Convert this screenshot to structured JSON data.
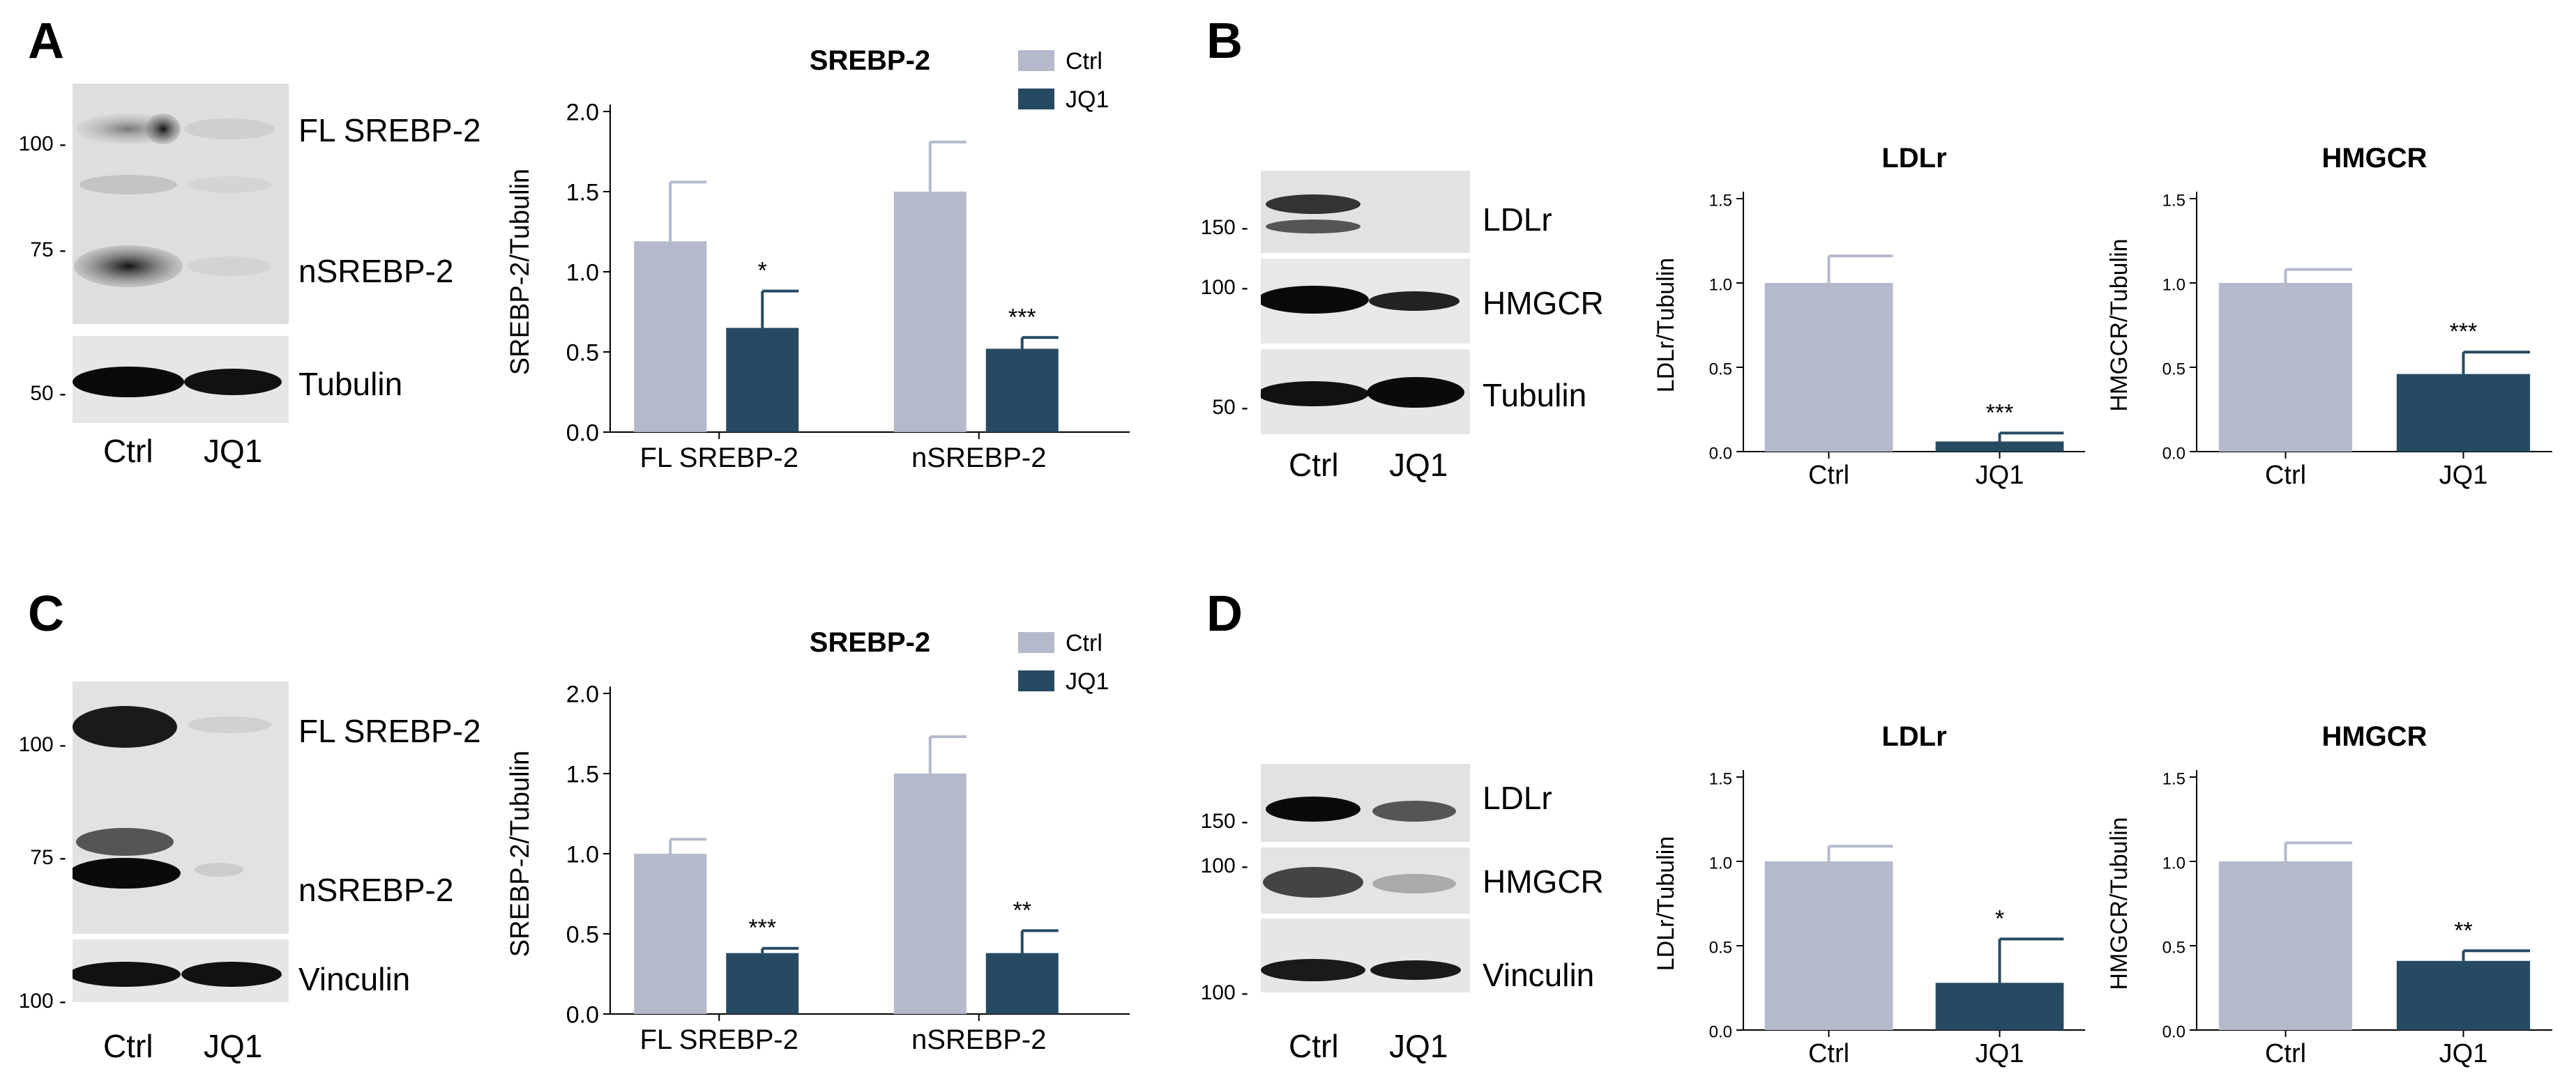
{
  "colors": {
    "ctrl": "#b4b9cc",
    "jq1": "#274a63",
    "axis": "#000000",
    "blot_bg": "#e8e8e8",
    "band": "#111111"
  },
  "panels": {
    "A": {
      "letter": "A",
      "blot": {
        "markers": [
          "100 -",
          "75 -",
          "50 -"
        ],
        "bands": [
          "FL SREBP-2",
          "nSREBP-2",
          "Tubulin"
        ],
        "lanes": [
          "Ctrl",
          "JQ1"
        ]
      }
    },
    "B": {
      "letter": "B",
      "blot": {
        "markers": [
          "150 -",
          "100 -",
          "50 -"
        ],
        "bands": [
          "LDLr",
          "HMGCR",
          "Tubulin"
        ],
        "lanes": [
          "Ctrl",
          "JQ1"
        ]
      }
    },
    "C": {
      "letter": "C",
      "blot": {
        "markers": [
          "100 -",
          "75 -",
          "100 -"
        ],
        "bands": [
          "FL SREBP-2",
          "nSREBP-2",
          "Vinculin"
        ],
        "lanes": [
          "Ctrl",
          "JQ1"
        ]
      }
    },
    "D": {
      "letter": "D",
      "blot": {
        "markers": [
          "150 -",
          "100 -",
          "100 -"
        ],
        "bands": [
          "LDLr",
          "HMGCR",
          "Vinculin"
        ],
        "lanes": [
          "Ctrl",
          "JQ1"
        ]
      }
    }
  },
  "chart_data": [
    {
      "id": "A-srebp2",
      "type": "bar",
      "title": "SREBP-2",
      "ylabel": "SREBP-2/Tubulin",
      "ylim": [
        0,
        2.0
      ],
      "yticks": [
        "0.0",
        "0.5",
        "1.0",
        "1.5",
        "2.0"
      ],
      "categories": [
        "FL SREBP-2",
        "nSREBP-2"
      ],
      "legend_position": "top-right",
      "series": [
        {
          "name": "Ctrl",
          "values": [
            1.19,
            1.5
          ],
          "errors": [
            0.37,
            0.31
          ],
          "sig": [
            "",
            ""
          ]
        },
        {
          "name": "JQ1",
          "values": [
            0.65,
            0.52
          ],
          "errors": [
            0.23,
            0.07
          ],
          "sig": [
            "*",
            "***"
          ]
        }
      ]
    },
    {
      "id": "B-ldlr",
      "type": "bar",
      "title": "LDLr",
      "ylabel": "LDLr/Tubulin",
      "ylim": [
        0,
        1.5
      ],
      "yticks": [
        "0.0",
        "0.5",
        "1.0",
        "1.5"
      ],
      "categories": [
        "Ctrl",
        "JQ1"
      ],
      "values": [
        1.0,
        0.06
      ],
      "errors": [
        0.16,
        0.05
      ],
      "sig": [
        "",
        "***"
      ]
    },
    {
      "id": "B-hmgcr",
      "type": "bar",
      "title": "HMGCR",
      "ylabel": "HMGCR/Tubulin",
      "ylim": [
        0,
        1.5
      ],
      "yticks": [
        "0.0",
        "0.5",
        "1.0",
        "1.5"
      ],
      "categories": [
        "Ctrl",
        "JQ1"
      ],
      "values": [
        1.0,
        0.46
      ],
      "errors": [
        0.08,
        0.13
      ],
      "sig": [
        "",
        "***"
      ]
    },
    {
      "id": "C-srebp2",
      "type": "bar",
      "title": "SREBP-2",
      "ylabel": "SREBP-2/Tubulin",
      "ylim": [
        0,
        2.0
      ],
      "yticks": [
        "0.0",
        "0.5",
        "1.0",
        "1.5",
        "2.0"
      ],
      "categories": [
        "FL SREBP-2",
        "nSREBP-2"
      ],
      "legend_position": "top-right",
      "series": [
        {
          "name": "Ctrl",
          "values": [
            1.0,
            1.5
          ],
          "errors": [
            0.09,
            0.23
          ],
          "sig": [
            "",
            ""
          ]
        },
        {
          "name": "JQ1",
          "values": [
            0.38,
            0.38
          ],
          "errors": [
            0.03,
            0.14
          ],
          "sig": [
            "***",
            "**"
          ]
        }
      ]
    },
    {
      "id": "D-ldlr",
      "type": "bar",
      "title": "LDLr",
      "ylabel": "LDLr/Tubulin",
      "ylim": [
        0,
        1.5
      ],
      "yticks": [
        "0.0",
        "0.5",
        "1.0",
        "1.5"
      ],
      "categories": [
        "Ctrl",
        "JQ1"
      ],
      "values": [
        1.0,
        0.28
      ],
      "errors": [
        0.09,
        0.26
      ],
      "sig": [
        "",
        "*"
      ]
    },
    {
      "id": "D-hmgcr",
      "type": "bar",
      "title": "HMGCR",
      "ylabel": "HMGCR/Tubulin",
      "ylim": [
        0,
        1.5
      ],
      "yticks": [
        "0.0",
        "0.5",
        "1.0",
        "1.5"
      ],
      "categories": [
        "Ctrl",
        "JQ1"
      ],
      "values": [
        1.0,
        0.41
      ],
      "errors": [
        0.11,
        0.06
      ],
      "sig": [
        "",
        "**"
      ]
    }
  ]
}
